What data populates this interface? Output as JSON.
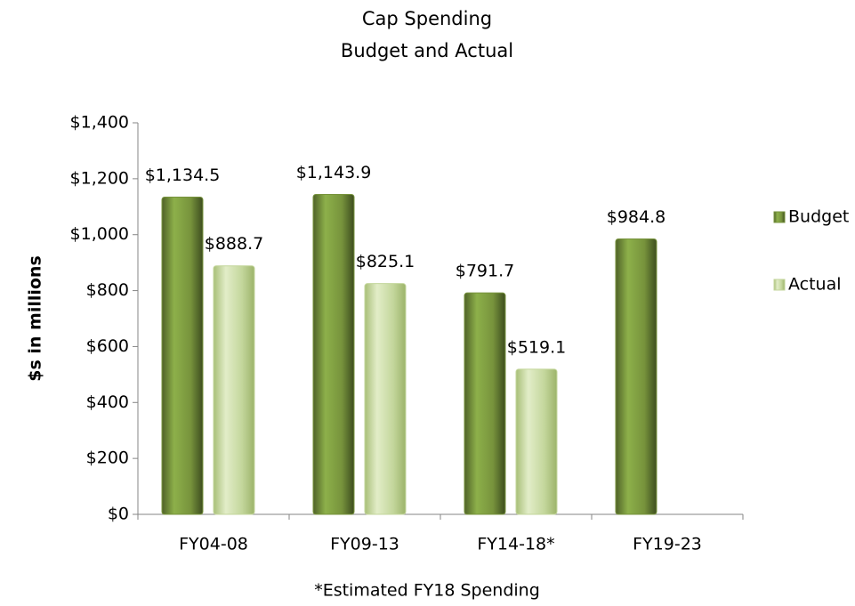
{
  "chart_data": {
    "type": "bar",
    "title": "Cap Spending",
    "subtitle": "Budget and Actual",
    "y_label": "$s in millions",
    "x_label": "*Estimated FY18 Spending",
    "categories": [
      "FY04-08",
      "FY09-13",
      "FY14-18*",
      "FY19-23"
    ],
    "series": [
      {
        "name": "Budget",
        "color": "#77933c",
        "values": [
          1134.5,
          1143.9,
          791.7,
          984.8
        ],
        "value_labels": [
          "$1,134.5",
          "$1,143.9",
          "$791.7",
          "$984.8"
        ]
      },
      {
        "name": "Actual",
        "color": "#c3d69b",
        "values": [
          888.7,
          825.1,
          519.1,
          null
        ],
        "value_labels": [
          "$888.7",
          "$825.1",
          "$519.1",
          null
        ]
      }
    ],
    "ylim": [
      0,
      1400
    ],
    "yticks": [
      {
        "value": 0,
        "label": "$0"
      },
      {
        "value": 200,
        "label": "$200"
      },
      {
        "value": 400,
        "label": "$400"
      },
      {
        "value": 600,
        "label": "$600"
      },
      {
        "value": 800,
        "label": "$800"
      },
      {
        "value": 1000,
        "label": "$1,000"
      },
      {
        "value": 1200,
        "label": "$1,200"
      },
      {
        "value": 1400,
        "label": "$1,400"
      }
    ],
    "grid": false,
    "legend": "right"
  }
}
